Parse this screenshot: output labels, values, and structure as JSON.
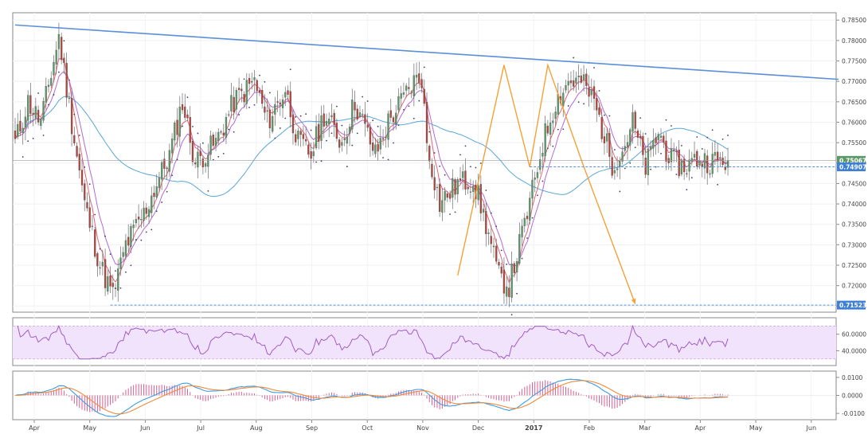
{
  "chart_data": {
    "type": "candlestick",
    "colors": {
      "up": "#5b9a68",
      "down": "#b5433a",
      "trendline": "#5b8fd9",
      "projection": "#f4a236",
      "ema_fast": "#e2647a",
      "ema_slow": "#b26ad6",
      "sma_long": "#5aa6d8",
      "sar": "#3c3c64",
      "rsi": "#a05dc4",
      "rsi_band": "#f1e3fb",
      "macd_line": "#3d9be0",
      "signal_line": "#f08a3c",
      "histogram": "#d95f91",
      "price_label_bg": "#5b9a68",
      "level_label_bg": "#3f7fd6",
      "price_label_text": "#ffffff"
    },
    "x_ticks": [
      "Apr",
      "May",
      "Jun",
      "Jul",
      "Aug",
      "Sep",
      "Oct",
      "Nov",
      "Dec",
      "2017",
      "Feb",
      "Mar",
      "Apr",
      "May",
      "Jun"
    ],
    "price_panel": {
      "y_ticks": [
        "0.78500",
        "0.78000",
        "0.77500",
        "0.77000",
        "0.76500",
        "0.76000",
        "0.75500",
        "0.75000",
        "0.74500",
        "0.74000",
        "0.73500",
        "0.73000",
        "0.72500",
        "0.72000",
        "0.71500"
      ],
      "ylim": [
        0.7135,
        0.7868
      ],
      "current_price": "0.75067",
      "support_level": "0.74907",
      "target_level": "0.71523",
      "trendline": {
        "start": [
          0,
          0.7838
        ],
        "end": [
          320,
          0.7705
        ]
      },
      "projection": {
        "start": [
          221,
          0.7491
        ],
        "end": [
          241,
          0.7155
        ]
      },
      "mw_pattern": [
        [
          172,
          0.7225
        ],
        [
          190,
          0.774
        ],
        [
          200,
          0.749
        ],
        [
          207,
          0.774
        ],
        [
          221,
          0.7491
        ]
      ],
      "anchors": [
        [
          0,
          0.755
        ],
        [
          5,
          0.765
        ],
        [
          10,
          0.76
        ],
        [
          15,
          0.775
        ],
        [
          17,
          0.781
        ],
        [
          22,
          0.76
        ],
        [
          27,
          0.74
        ],
        [
          33,
          0.725
        ],
        [
          38,
          0.7175
        ],
        [
          43,
          0.73
        ],
        [
          50,
          0.7375
        ],
        [
          55,
          0.745
        ],
        [
          60,
          0.752
        ],
        [
          65,
          0.765
        ],
        [
          70,
          0.75
        ],
        [
          78,
          0.755
        ],
        [
          85,
          0.765
        ],
        [
          93,
          0.77
        ],
        [
          98,
          0.76
        ],
        [
          105,
          0.768
        ],
        [
          110,
          0.755
        ],
        [
          115,
          0.752
        ],
        [
          120,
          0.762
        ],
        [
          127,
          0.755
        ],
        [
          132,
          0.765
        ],
        [
          140,
          0.752
        ],
        [
          145,
          0.76
        ],
        [
          150,
          0.765
        ],
        [
          155,
          0.77
        ],
        [
          158,
          0.771
        ],
        [
          160,
          0.755
        ],
        [
          165,
          0.74
        ],
        [
          172,
          0.745
        ],
        [
          178,
          0.746
        ],
        [
          183,
          0.735
        ],
        [
          188,
          0.722
        ],
        [
          192,
          0.72
        ],
        [
          196,
          0.73
        ],
        [
          200,
          0.74
        ],
        [
          205,
          0.755
        ],
        [
          210,
          0.765
        ],
        [
          215,
          0.77
        ],
        [
          220,
          0.77
        ],
        [
          225,
          0.765
        ],
        [
          232,
          0.75
        ],
        [
          236,
          0.753
        ],
        [
          240,
          0.76
        ],
        [
          245,
          0.749
        ],
        [
          250,
          0.7575
        ],
        [
          255,
          0.7505
        ],
        [
          260,
          0.749
        ],
        [
          265,
          0.751
        ],
        [
          270,
          0.7505
        ],
        [
          275,
          0.7505
        ],
        [
          277,
          0.7507
        ]
      ]
    },
    "rsi_panel": {
      "y_ticks": [
        "60.0000",
        "40.0000"
      ],
      "ylim": [
        22,
        80
      ],
      "band": [
        30,
        70
      ]
    },
    "macd_panel": {
      "y_ticks": [
        "0.0100",
        "0.0000",
        "-0.0100"
      ],
      "ylim": [
        -0.0135,
        0.0135
      ]
    }
  }
}
